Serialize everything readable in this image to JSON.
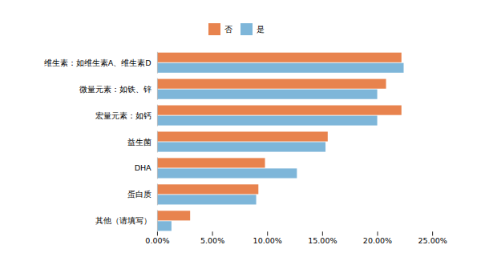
{
  "chart_data": {
    "type": "bar",
    "orientation": "horizontal",
    "categories": [
      "其他（请填写）",
      "蛋白质",
      "DHA",
      "益生菌",
      "宏量元素：如钙",
      "微量元素：如铁、锌",
      "维生素：如维生素A、维生素D"
    ],
    "series": [
      {
        "name": "否",
        "color": "#E8834E",
        "values": [
          0.03,
          0.092,
          0.098,
          0.155,
          0.222,
          0.208,
          0.222
        ]
      },
      {
        "name": "是",
        "color": "#7EB6D9",
        "values": [
          0.013,
          0.09,
          0.127,
          0.153,
          0.2,
          0.2,
          0.224
        ]
      }
    ],
    "xlim": [
      0,
      0.25
    ],
    "xticks": [
      {
        "value": 0.0,
        "label": "0.00%"
      },
      {
        "value": 0.05,
        "label": "5.00%"
      },
      {
        "value": 0.1,
        "label": "10.00%"
      },
      {
        "value": 0.15,
        "label": "15.00%"
      },
      {
        "value": 0.2,
        "label": "20.00%"
      },
      {
        "value": 0.25,
        "label": "25.00%"
      }
    ],
    "legend": "top",
    "grid": false
  }
}
